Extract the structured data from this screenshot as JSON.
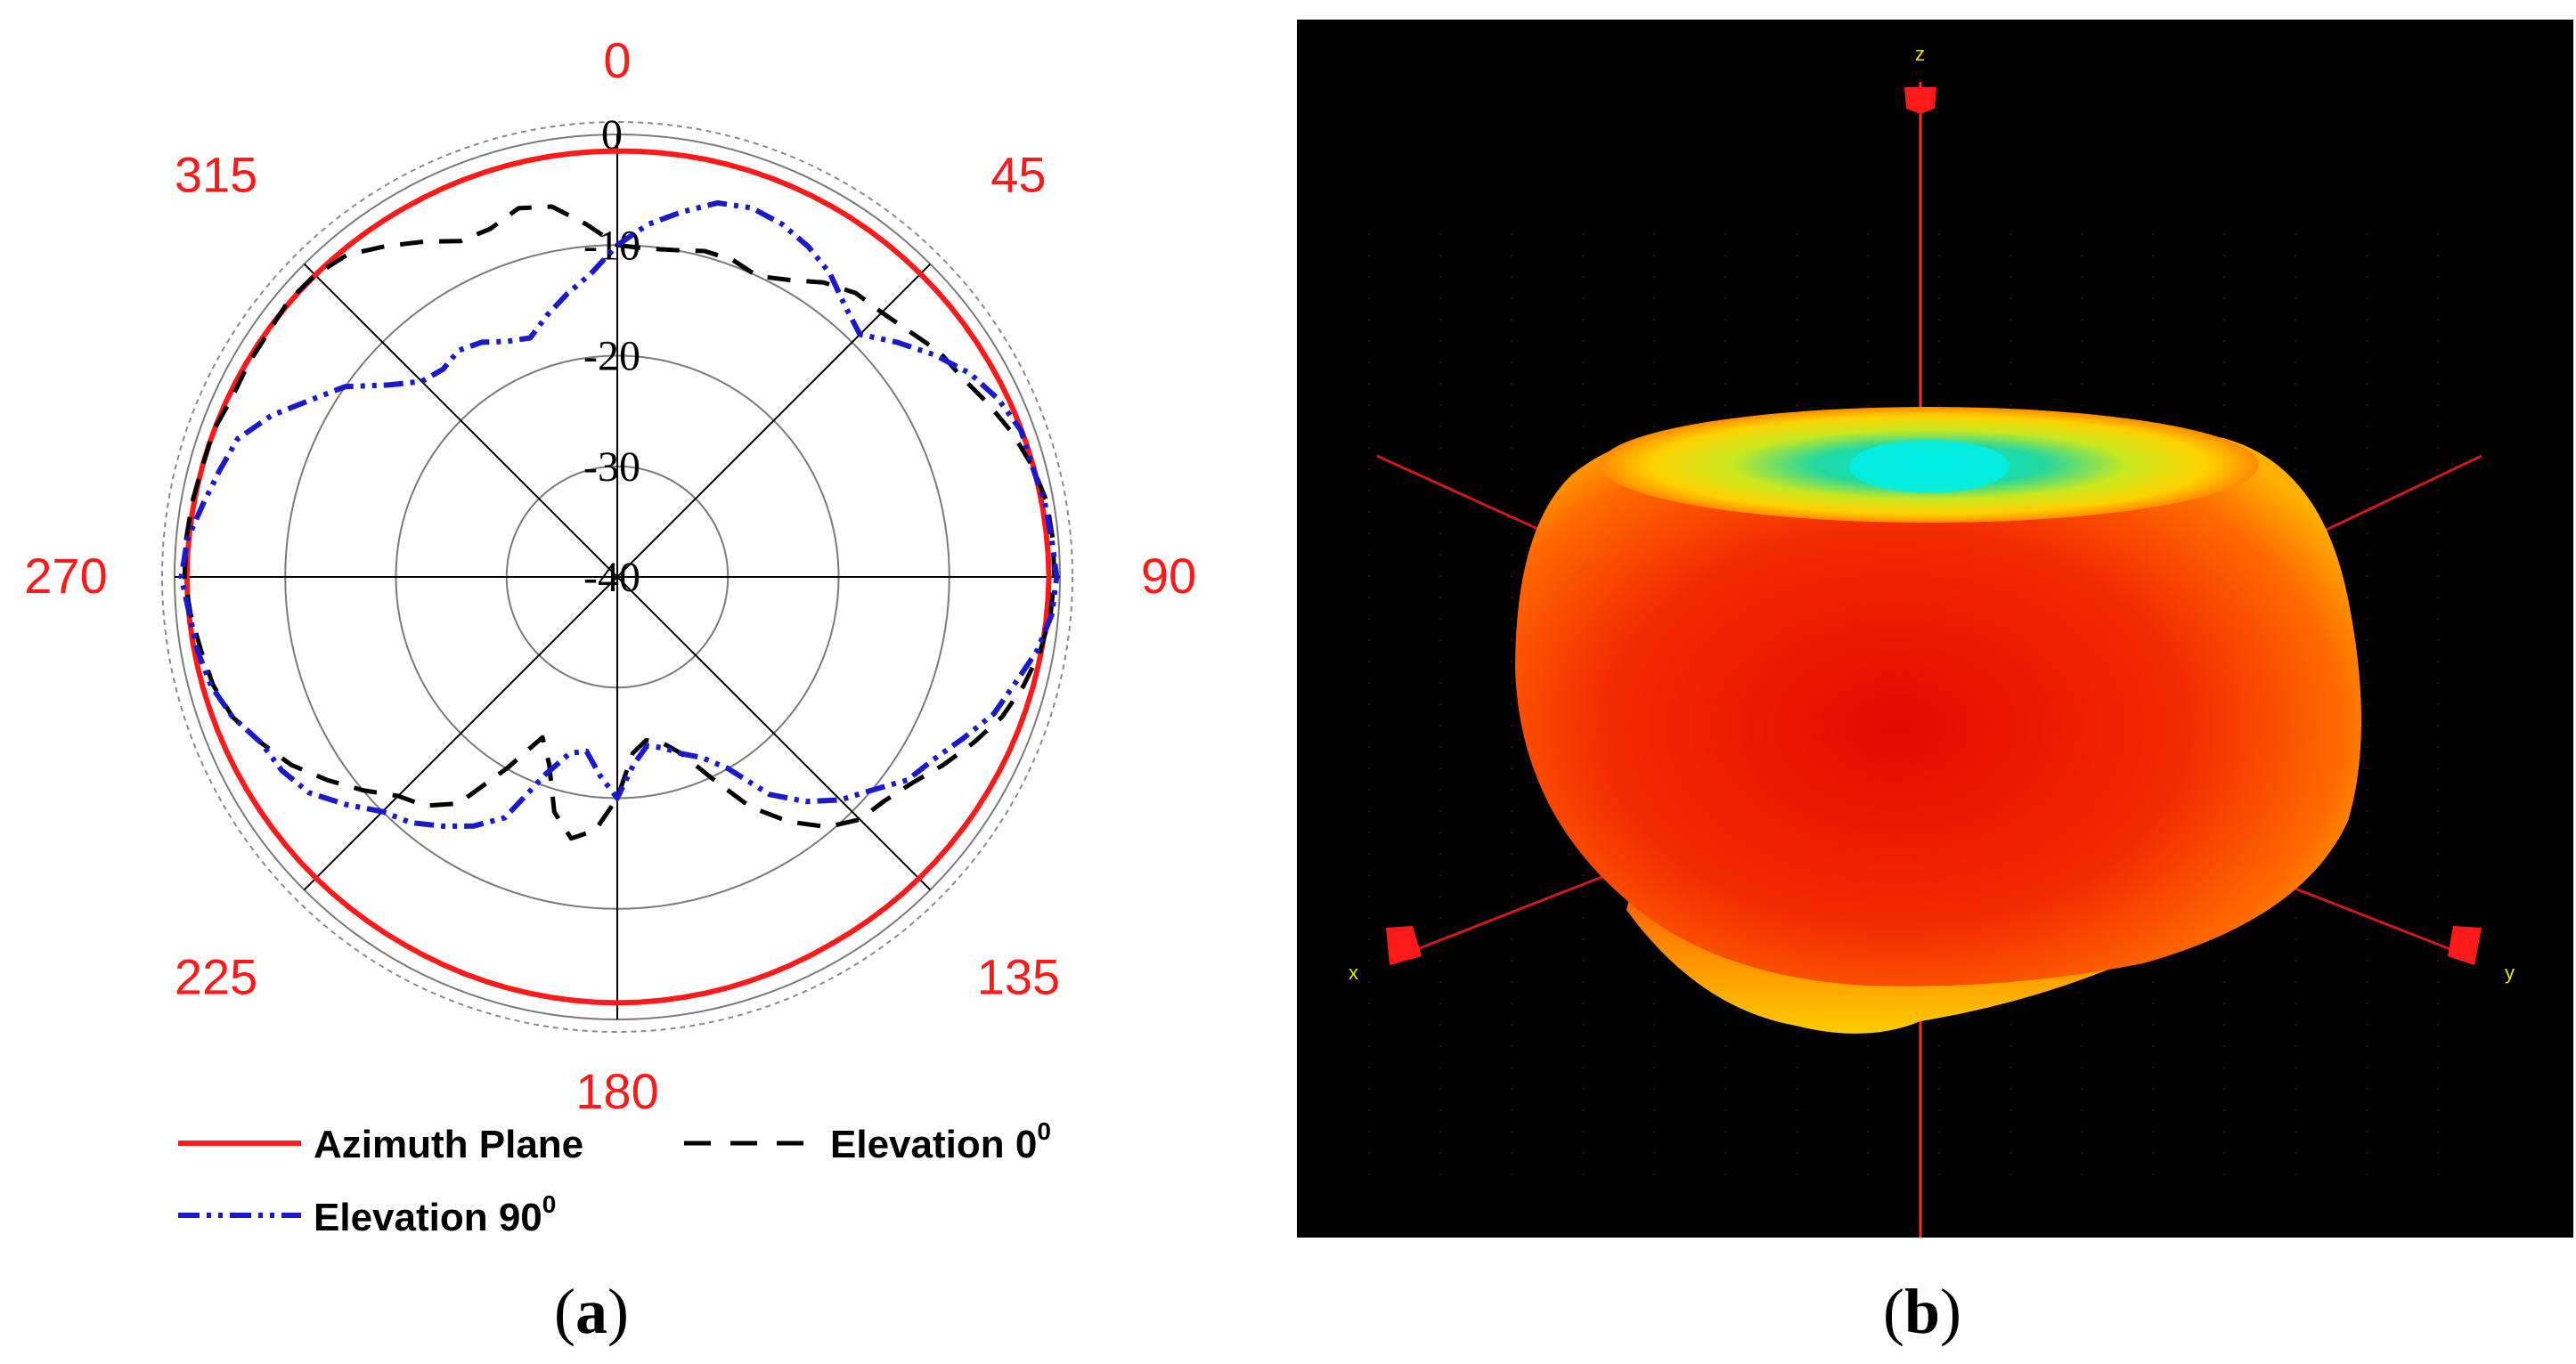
{
  "figure": {
    "captions": [
      {
        "open": "(",
        "letter": "a",
        "close": ")"
      },
      {
        "open": "(",
        "letter": "b",
        "close": ")"
      }
    ]
  },
  "colors": {
    "angle_label": "#ff1a1a",
    "azimuth": "#ff1a1a",
    "elevation0": "#000000",
    "elevation90": "#1a1acc"
  },
  "chart_data": [
    {
      "type": "polar-line",
      "title": "",
      "angle_labels": [
        "0",
        "45",
        "90",
        "135",
        "180",
        "225",
        "270",
        "315"
      ],
      "radial_labels": [
        "0",
        "-10",
        "-20",
        "-30",
        "-40"
      ],
      "radial_range": [
        -40,
        0
      ],
      "angle_unit": "deg",
      "angle_zero": "top",
      "angle_direction": "clockwise",
      "legend": [
        {
          "label": "Azimuth Plane",
          "style": "solid",
          "superscript": ""
        },
        {
          "label": "Elevation 0",
          "style": "dashed",
          "superscript": "0"
        },
        {
          "label": "Elevation 90",
          "style": "dash-dot-dot",
          "superscript": "0"
        }
      ],
      "series": [
        {
          "name": "Azimuth Plane",
          "theta": [
            0,
            30,
            60,
            90,
            120,
            150,
            180,
            210,
            240,
            270,
            300,
            330
          ],
          "r": [
            -1.5,
            -1.3,
            -1.2,
            -1.0,
            -1.3,
            -1.6,
            -1.5,
            -1.6,
            -1.4,
            -1.1,
            -1.3,
            -1.5
          ]
        },
        {
          "name": "Elevation 0",
          "theta": [
            0,
            5,
            10,
            15,
            20,
            25,
            30,
            35,
            40,
            45,
            50,
            55,
            60,
            65,
            70,
            75,
            80,
            85,
            90,
            95,
            100,
            105,
            110,
            115,
            120,
            125,
            130,
            135,
            140,
            145,
            150,
            155,
            160,
            165,
            170,
            175,
            180,
            185,
            190,
            195,
            200,
            205,
            210,
            215,
            220,
            225,
            230,
            235,
            240,
            245,
            250,
            255,
            260,
            265,
            270,
            275,
            280,
            285,
            290,
            295,
            300,
            305,
            310,
            315,
            320,
            325,
            330,
            335,
            340,
            345,
            350,
            355
          ],
          "r": [
            -10,
            -10.2,
            -10,
            -9.5,
            -9.5,
            -10,
            -9,
            -7.5,
            -6.5,
            -6.2,
            -5.5,
            -4.5,
            -4,
            -3,
            -2,
            -1.2,
            -0.6,
            -0.5,
            -0.5,
            -0.7,
            -1.2,
            -2,
            -3,
            -4.5,
            -6,
            -7.5,
            -8.5,
            -9,
            -10.5,
            -13,
            -16,
            -20,
            -23,
            -24.5,
            -25,
            -24,
            -20,
            -17,
            -16,
            -18,
            -22,
            -24,
            -20,
            -15,
            -13,
            -12,
            -10,
            -8,
            -6,
            -4.5,
            -3,
            -2.2,
            -1.8,
            -1.3,
            -0.9,
            -0.9,
            -1,
            -1.2,
            -1.2,
            -1.6,
            -1.5,
            -1.5,
            -1.2,
            -1.4,
            -2,
            -3.5,
            -5,
            -6.5,
            -6.5,
            -5.5,
            -6,
            -8
          ]
        },
        {
          "name": "Elevation 90",
          "theta": [
            0,
            5,
            10,
            15,
            20,
            25,
            30,
            35,
            40,
            45,
            50,
            55,
            60,
            65,
            70,
            75,
            80,
            85,
            90,
            95,
            100,
            105,
            110,
            115,
            120,
            125,
            130,
            135,
            140,
            145,
            150,
            155,
            160,
            165,
            170,
            175,
            180,
            185,
            190,
            195,
            200,
            205,
            210,
            215,
            220,
            225,
            230,
            235,
            240,
            245,
            250,
            255,
            260,
            265,
            270,
            275,
            280,
            285,
            290,
            295,
            300,
            305,
            310,
            315,
            320,
            325,
            330,
            335,
            340,
            345,
            350,
            355
          ],
          "r": [
            -10,
            -8,
            -6.5,
            -5,
            -4.5,
            -4.8,
            -5.5,
            -6.5,
            -8,
            -9,
            -7,
            -5,
            -3.2,
            -2,
            -1.2,
            -1.2,
            -0.8,
            -0.6,
            -0.3,
            -0.6,
            -1.5,
            -2.8,
            -3.8,
            -5.5,
            -7,
            -8,
            -10,
            -11.5,
            -13.5,
            -16,
            -20,
            -22,
            -23,
            -24,
            -24.5,
            -23,
            -20,
            -22,
            -24,
            -23.5,
            -21,
            -16,
            -14,
            -12.5,
            -11,
            -10,
            -8,
            -6,
            -5,
            -4.5,
            -3,
            -2,
            -1.5,
            -1.2,
            -0.6,
            -1,
            -2,
            -2.8,
            -3.5,
            -5.5,
            -8,
            -10,
            -13,
            -15,
            -15.5,
            -15,
            -15.5,
            -16.5,
            -17,
            -15.5,
            -14,
            -12.5
          ]
        }
      ]
    }
  ]
}
